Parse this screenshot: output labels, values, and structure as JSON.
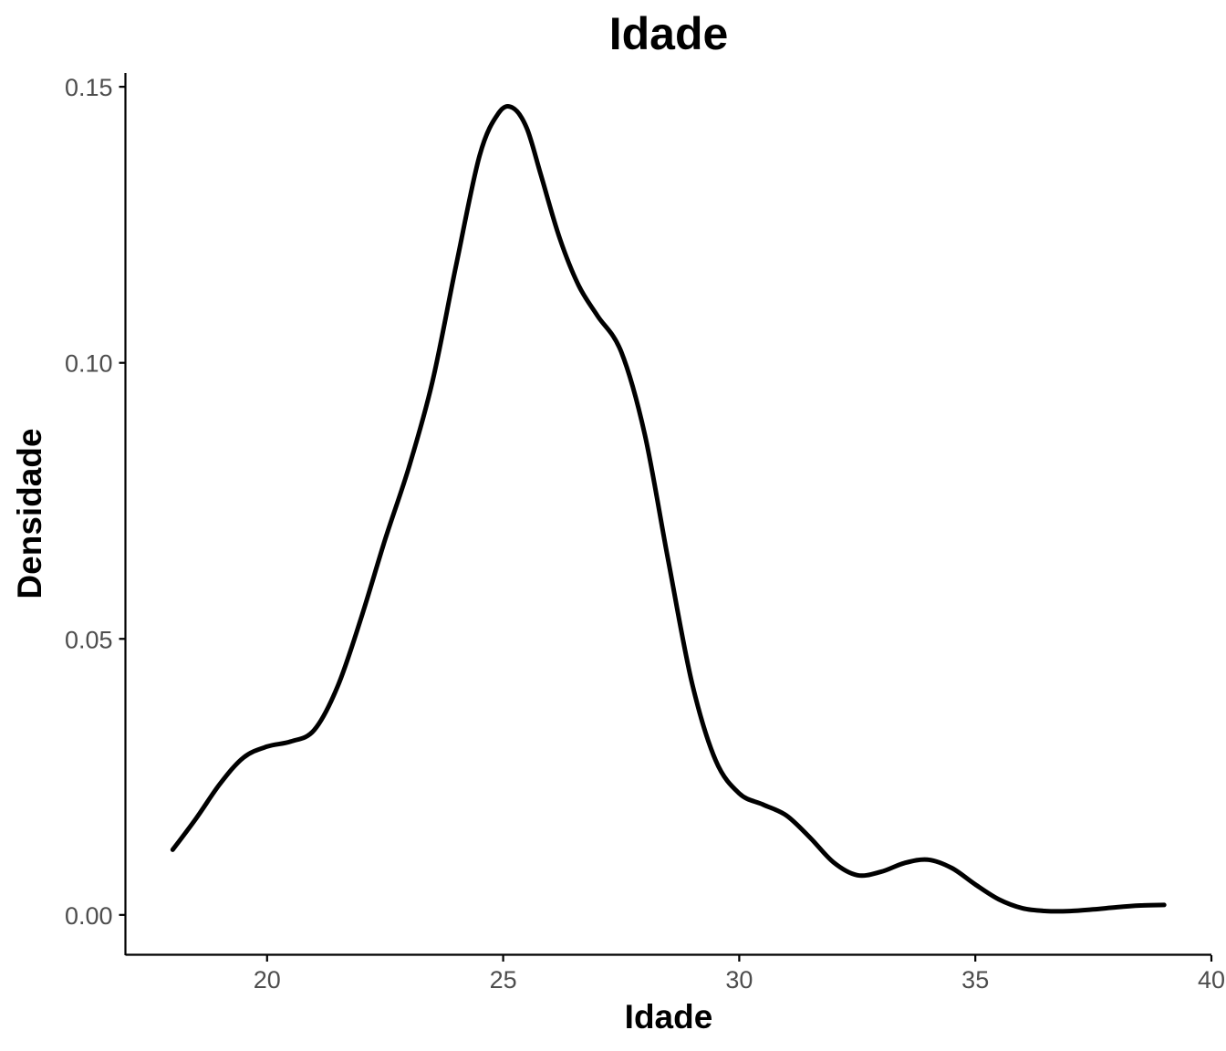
{
  "chart_data": {
    "type": "line",
    "title": "Idade",
    "xlabel": "Idade",
    "ylabel": "Densidade",
    "xlim": [
      17,
      40
    ],
    "ylim": [
      -0.0073,
      0.1525
    ],
    "x_ticks": [
      20,
      25,
      30,
      35,
      40
    ],
    "x_tick_labels": [
      "20",
      "25",
      "30",
      "35",
      "40"
    ],
    "y_ticks": [
      0.0,
      0.05,
      0.1,
      0.15
    ],
    "y_tick_labels": [
      "0.00",
      "0.05",
      "0.10",
      "0.15"
    ],
    "grid": false,
    "legend": "none",
    "series": [
      {
        "color": "#000000",
        "x": [
          18.0,
          18.5,
          19.0,
          19.5,
          20.0,
          20.5,
          21.0,
          21.5,
          22.0,
          22.5,
          23.0,
          23.5,
          24.0,
          24.5,
          24.9,
          25.2,
          25.5,
          25.8,
          26.2,
          26.6,
          27.0,
          27.5,
          28.0,
          28.5,
          29.0,
          29.5,
          30.0,
          30.5,
          31.0,
          31.5,
          32.0,
          32.5,
          33.0,
          33.5,
          34.0,
          34.5,
          35.0,
          35.5,
          36.0,
          36.5,
          37.0,
          37.5,
          38.0,
          38.5,
          39.0
        ],
        "y": [
          0.0118,
          0.0175,
          0.0237,
          0.0285,
          0.0305,
          0.0314,
          0.0335,
          0.0415,
          0.054,
          0.068,
          0.081,
          0.0965,
          0.1175,
          0.1375,
          0.1452,
          0.1462,
          0.1425,
          0.134,
          0.1225,
          0.114,
          0.1085,
          0.102,
          0.087,
          0.064,
          0.042,
          0.028,
          0.022,
          0.02,
          0.018,
          0.014,
          0.0095,
          0.0072,
          0.0078,
          0.0094,
          0.01,
          0.0085,
          0.0055,
          0.0028,
          0.0012,
          0.0007,
          0.0007,
          0.001,
          0.0014,
          0.0017,
          0.0018
        ]
      }
    ]
  }
}
